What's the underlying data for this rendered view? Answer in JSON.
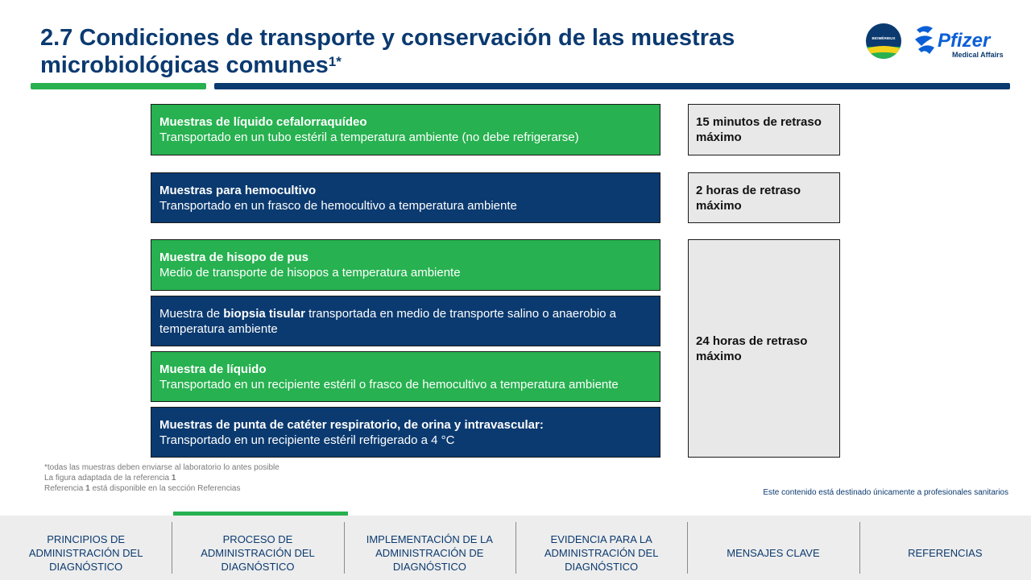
{
  "header": {
    "title": "2.7 Condiciones de transporte y conservación de las muestras microbiológicas comunes",
    "title_sup": "1*",
    "logo_biomerieux_text": "BIOMÉRIEUX",
    "logo_pfizer_text": "Pfizer",
    "logo_pfizer_sub": "Medical Affairs"
  },
  "colors": {
    "green": "#27b150",
    "blue": "#0b3a70",
    "gray": "#e8e8e8"
  },
  "samples": [
    {
      "title": "Muestras de líquido cefalorraquídeo",
      "desc": "Transportado  en un tubo estéril a temperatura ambiente (no debe refrigerarse)"
    },
    {
      "title": "Muestras para hemocultivo",
      "desc": "Transportado  en un frasco de hemocultivo  a temperatura  ambiente"
    },
    {
      "title": "Muestra de hisopo de pus",
      "desc": "Medio de transporte de hisopos a temperatura  ambiente"
    },
    {
      "pre": "Muestra de ",
      "bold": "biopsia tisular",
      "post": " transportada  en medio de transporte salino o anaerobio a temperatura  ambiente"
    },
    {
      "title": "Muestra de líquido",
      "desc": "Transportado  en un recipiente estéril o frasco de hemocultivo  a temperatura  ambiente"
    },
    {
      "title": "Muestras de punta de catéter respiratorio, de orina y intravascular:",
      "desc": "Transportado  en un recipiente estéril refrigerado a 4 °C"
    }
  ],
  "delays": [
    "15 minutos de retraso máximo",
    "2 horas de retraso máximo",
    "24 horas de retraso máximo"
  ],
  "footnotes": {
    "line1": "*todas las muestras deben enviarse al laboratorio lo antes posible",
    "line2_pre": "La figura adaptada de la referencia ",
    "line2_bold": "1",
    "line3_pre": "Referencia ",
    "line3_bold": "1",
    "line3_post": " está disponible en la  sección Referencias"
  },
  "disclaimer": "Este contenido está destinado únicamente  a profesionales sanitarios",
  "nav": [
    "PRINCIPIOS  DE ADMINISTRACIÓN  DEL DIAGNÓSTICO",
    "PROCESO DE ADMINISTRACIÓN  DEL DIAGNÓSTICO",
    "IMPLEMENTACIÓN  DE LA ADMINISTRACIÓN  DE DIAGNÓSTICO",
    "EVIDENCIA PARA LA ADMINISTRACIÓN  DEL DIAGNÓSTICO",
    "MENSAJES CLAVE",
    "REFERENCIAS"
  ]
}
